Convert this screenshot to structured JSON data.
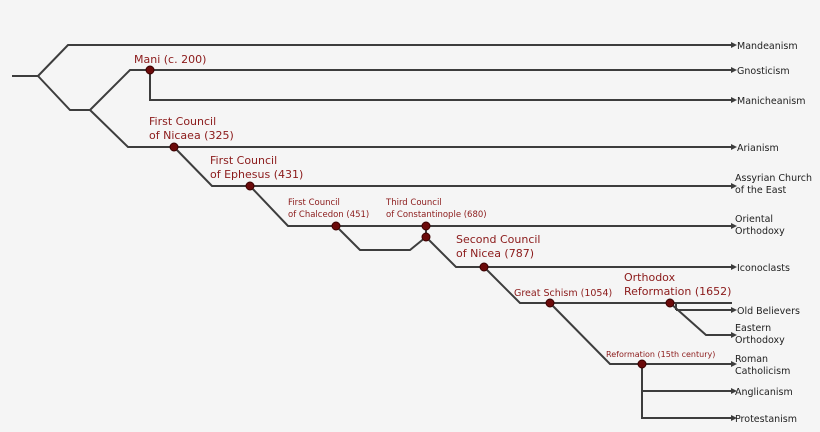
{
  "colors": {
    "line": "#3d3d3d",
    "event_text": "#8b1a1a",
    "node": "#6b0a0a",
    "background": "#f5f5f5"
  },
  "branches": [
    {
      "label": "Mandeanism"
    },
    {
      "label": "Gnosticism"
    },
    {
      "label": "Manicheanism"
    },
    {
      "label": "Arianism"
    },
    {
      "label": [
        "Assyrian Church",
        "of the East"
      ]
    },
    {
      "label": [
        "Oriental",
        "Orthodoxy"
      ]
    },
    {
      "label": "Iconoclasts"
    },
    {
      "label": "Old Believers"
    },
    {
      "label": [
        "Eastern",
        "Orthodoxy"
      ]
    },
    {
      "label": [
        "Roman",
        "Catholicism"
      ]
    },
    {
      "label": "Anglicanism"
    },
    {
      "label": "Protestanism"
    }
  ],
  "events": [
    {
      "label": "Mani (c. 200)"
    },
    {
      "label": [
        "First Council",
        "of Nicaea (325)"
      ]
    },
    {
      "label": [
        "First Council",
        "of Ephesus (431)"
      ]
    },
    {
      "label": [
        "First Council",
        "of Chalcedon (451)"
      ]
    },
    {
      "label": [
        "Third Council",
        "of Constantinople (680)"
      ]
    },
    {
      "label": [
        "Second Council",
        "of Nicea (787)"
      ]
    },
    {
      "label": "Great Schism (1054)"
    },
    {
      "label": [
        "Orthodox",
        "Reformation (1652)"
      ]
    },
    {
      "label": "Reformation (15th century)"
    }
  ]
}
